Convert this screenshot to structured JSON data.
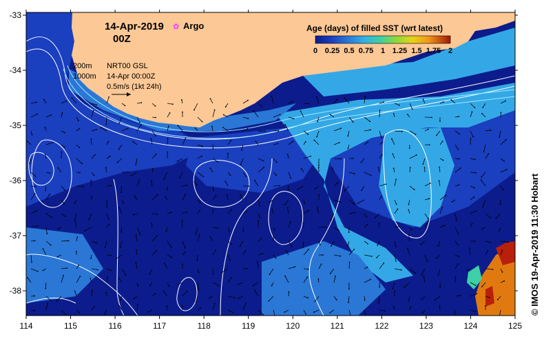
{
  "header": {
    "date": "14-Apr-2019",
    "time": "00Z",
    "argo_label": "Argo"
  },
  "legend": {
    "title": "Age (days) of filled SST (wrt latest)",
    "ticks": [
      "0",
      "0.25",
      "0.5",
      "0.75",
      "1",
      "1.25",
      "1.5",
      "1.75",
      "2"
    ],
    "colors": [
      "#0c1c8c",
      "#1a3fbf",
      "#2a77d6",
      "#34b0e6",
      "#3ecfa6",
      "#8fd83a",
      "#e8d21a",
      "#f0961a",
      "#d94a10",
      "#a01808"
    ]
  },
  "annotations": {
    "contour_200": "200m",
    "contour_1000": "1000m",
    "product": "NRT00 GSL",
    "product_time": "14-Apr 00:00Z",
    "scale": "0.5m/s (1kt 24h)"
  },
  "axes": {
    "x_ticks": [
      "114",
      "115",
      "116",
      "117",
      "118",
      "119",
      "120",
      "121",
      "122",
      "123",
      "124",
      "125"
    ],
    "y_ticks": [
      "-33",
      "-34",
      "-35",
      "-36",
      "-37",
      "-38"
    ]
  },
  "credit": "© IMOS 19-Apr-2019 11:30 Hobart",
  "colors": {
    "land": "#fcc896",
    "ocean_deep": "#0c1c8c",
    "ocean_mid": "#1a3fbf",
    "ocean_light": "#34a8e6",
    "shelf": "#2a77d6",
    "warm": "#e07a10",
    "hot": "#b8200c"
  }
}
